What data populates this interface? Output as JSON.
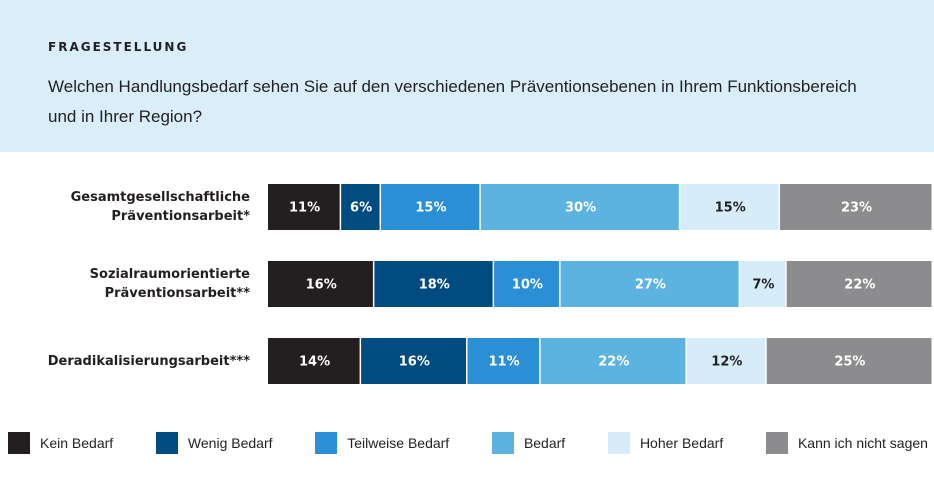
{
  "header": {
    "title": "FRAGESTELLUNG",
    "question": "Welchen Handlungsbedarf sehen Sie auf den verschiedenen Präventionsebenen in Ihrem Funktionsbereich und in Ihrer Region?"
  },
  "chart_data": {
    "type": "bar",
    "orientation": "horizontal",
    "stacked": true,
    "legend": "bottom",
    "categories": [
      "Gesamtgesellschaftliche Präventionsarbeit*",
      "Sozialraumorientierte Präventionsarbeit**",
      "Deradikalisierungsarbeit***"
    ],
    "series": [
      {
        "name": "Kein Bedarf",
        "color": "#231f20",
        "values": [
          11,
          16,
          14
        ],
        "value_labels": [
          "11%",
          "16%",
          "14%"
        ]
      },
      {
        "name": "Wenig Bedarf",
        "color": "#004b80",
        "values": [
          6,
          18,
          16
        ],
        "value_labels": [
          "6%",
          "18%",
          "16%"
        ]
      },
      {
        "name": "Teilweise Bedarf",
        "color": "#2a8fd4",
        "values": [
          15,
          10,
          11
        ],
        "value_labels": [
          "15%",
          "10%",
          "11%"
        ]
      },
      {
        "name": "Bedarf",
        "color": "#5db3e0",
        "values": [
          30,
          27,
          22
        ],
        "value_labels": [
          "30%",
          "27%",
          "22%"
        ]
      },
      {
        "name": "Hoher Bedarf",
        "color": "#d6ecf8",
        "values": [
          15,
          7,
          12
        ],
        "value_labels": [
          "15%",
          "7%",
          "12%"
        ]
      },
      {
        "name": "Kann ich nicht sagen",
        "color": "#8c8c8e",
        "values": [
          23,
          22,
          25
        ],
        "value_labels": [
          "23%",
          "22%",
          "25%"
        ]
      }
    ]
  }
}
